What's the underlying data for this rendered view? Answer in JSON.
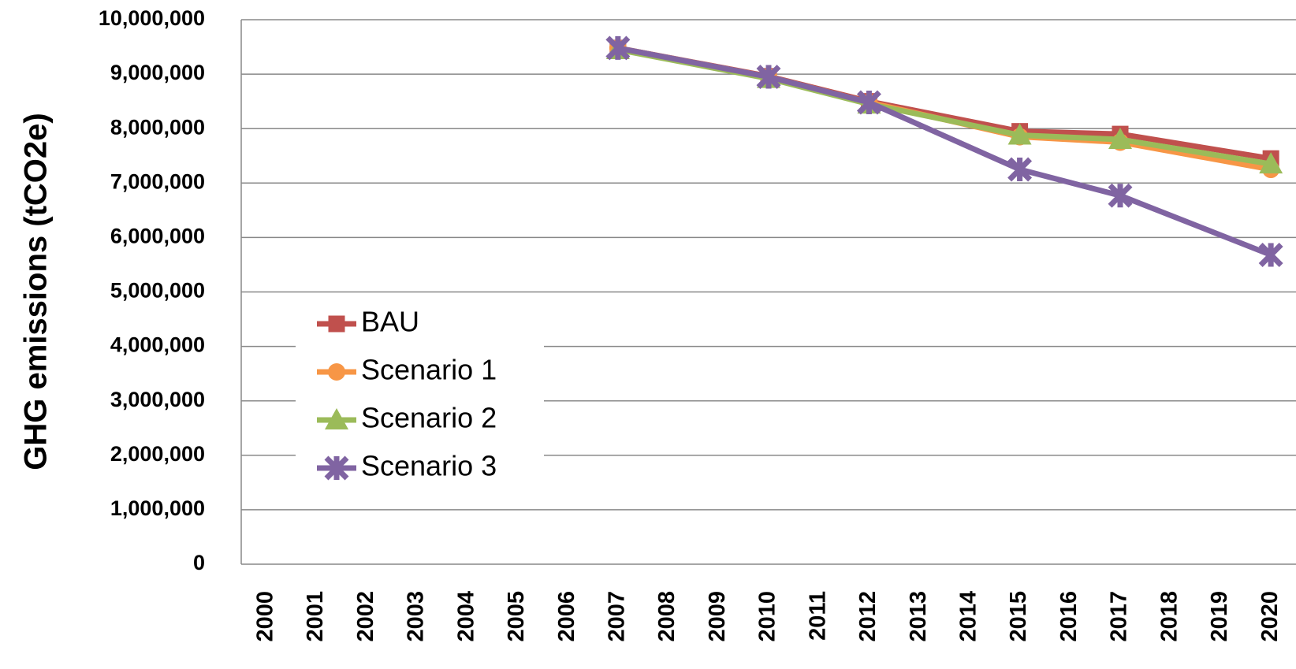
{
  "chart_data": {
    "type": "line",
    "y_label": "GHG emissions (tCO2e)",
    "x": [
      2007,
      2010,
      2012,
      2015,
      2017,
      2020
    ],
    "xlim": [
      1999.5,
      2020.5
    ],
    "xticks": [
      2000,
      2001,
      2002,
      2003,
      2004,
      2005,
      2006,
      2007,
      2008,
      2009,
      2010,
      2011,
      2012,
      2013,
      2014,
      2015,
      2016,
      2017,
      2018,
      2019,
      2020
    ],
    "ylim": [
      0,
      10000000
    ],
    "yticks": [
      0,
      {
        "value": 1000000,
        "label": "1,000,000"
      },
      {
        "value": 2000000,
        "label": "2,000,000"
      },
      {
        "value": 3000000,
        "label": "3,000,000"
      },
      {
        "value": 4000000,
        "label": "4,000,000"
      },
      {
        "value": 5000000,
        "label": "5,000,000"
      },
      {
        "value": 6000000,
        "label": "6,000,000"
      },
      {
        "value": 7000000,
        "label": "7,000,000"
      },
      {
        "value": 8000000,
        "label": "8,000,000"
      },
      {
        "value": 9000000,
        "label": "9,000,000"
      },
      {
        "value": 10000000,
        "label": "10,000,000"
      }
    ],
    "grid": true,
    "legend": "center left",
    "series": [
      {
        "name": "BAU",
        "color": "#c0504d",
        "marker": "square",
        "values": [
          9480000,
          8960000,
          8500000,
          7950000,
          7900000,
          7450000
        ]
      },
      {
        "name": "Scenario 1",
        "color": "#f79646",
        "marker": "circle",
        "values": [
          9480000,
          8950000,
          8480000,
          7850000,
          7750000,
          7250000
        ]
      },
      {
        "name": "Scenario 2",
        "color": "#9bbb59",
        "marker": "triangle",
        "values": [
          9450000,
          8920000,
          8450000,
          7880000,
          7800000,
          7350000
        ]
      },
      {
        "name": "Scenario 3",
        "color": "#8064a2",
        "marker": "x",
        "values": [
          9480000,
          8950000,
          8480000,
          7250000,
          6770000,
          5680000
        ]
      }
    ]
  }
}
